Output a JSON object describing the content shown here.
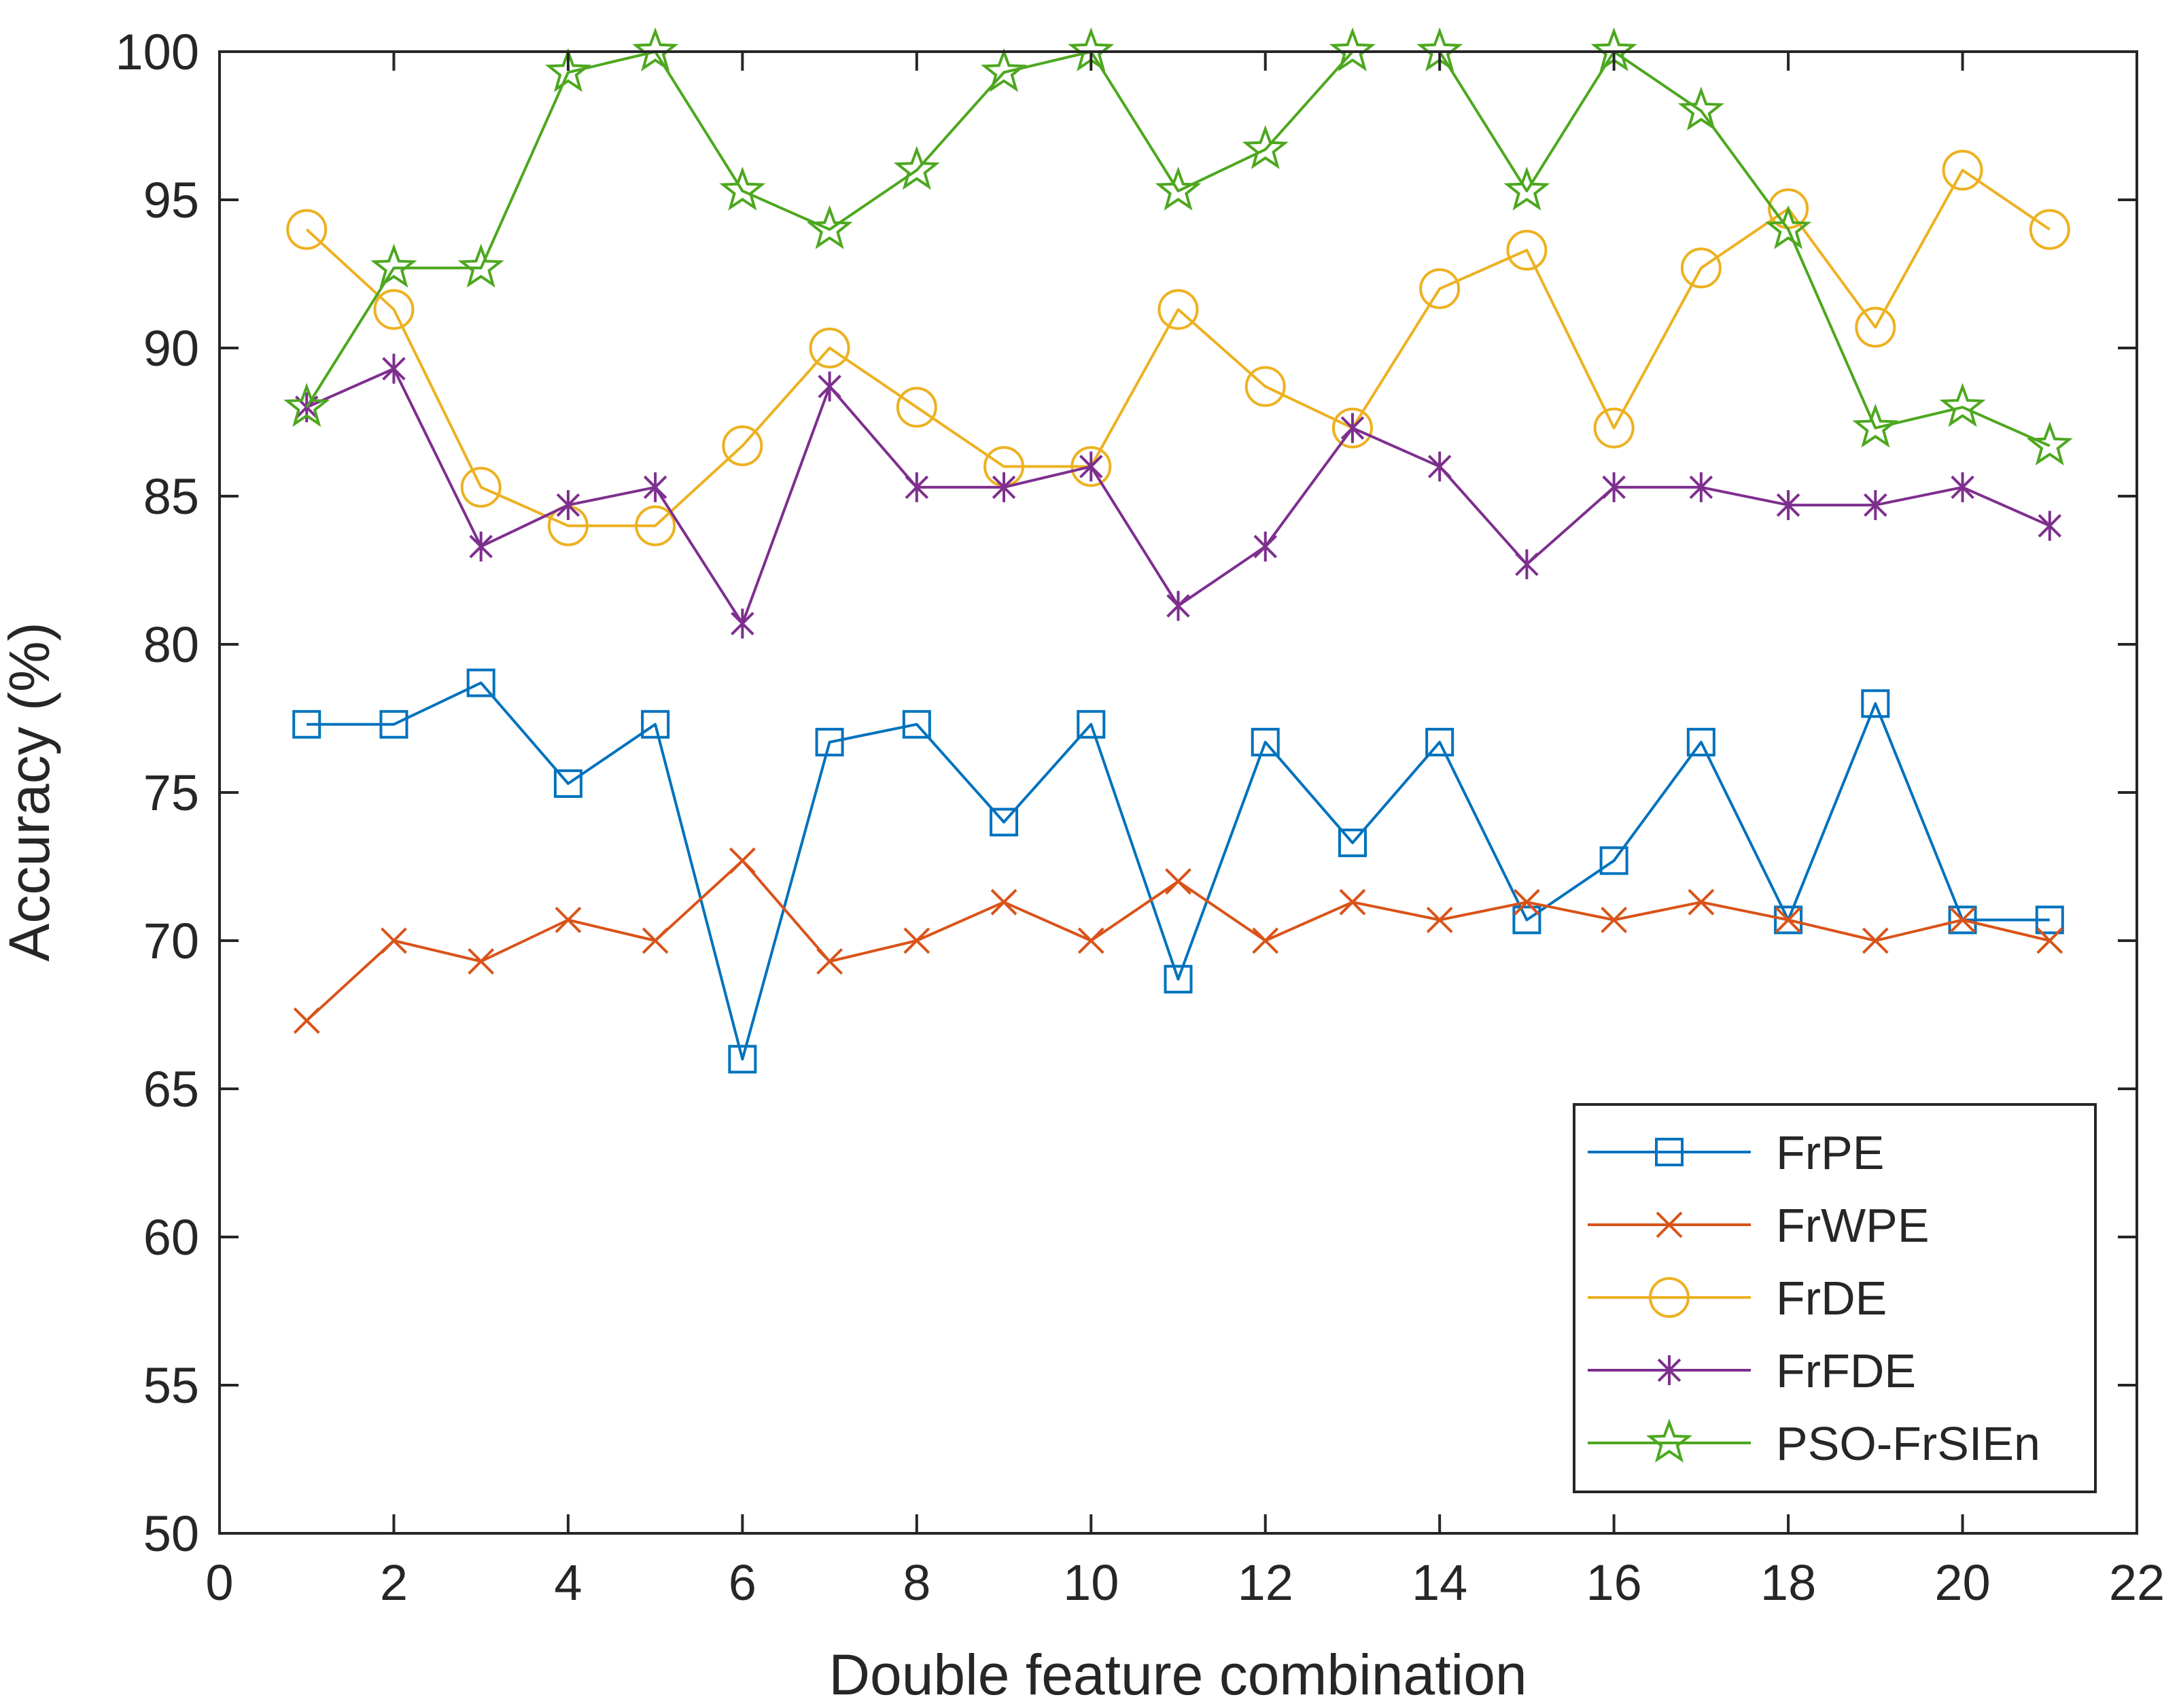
{
  "chart_data": {
    "type": "line",
    "title": "",
    "xlabel": "Double feature combination",
    "ylabel": "Accuracy (%)",
    "xlim": [
      0,
      22
    ],
    "ylim": [
      50,
      100
    ],
    "xticks": [
      0,
      2,
      4,
      6,
      8,
      10,
      12,
      14,
      16,
      18,
      20,
      22
    ],
    "yticks": [
      50,
      55,
      60,
      65,
      70,
      75,
      80,
      85,
      90,
      95,
      100
    ],
    "grid": false,
    "legend_position": "bottom-right",
    "x": [
      1,
      2,
      3,
      4,
      5,
      6,
      7,
      8,
      9,
      10,
      11,
      12,
      13,
      14,
      15,
      16,
      17,
      18,
      19,
      20,
      21
    ],
    "series": [
      {
        "name": "FrPE",
        "color": "#0072BD",
        "marker": "square",
        "values": [
          77.3,
          77.3,
          78.7,
          75.3,
          77.3,
          66.0,
          76.7,
          77.3,
          74.0,
          77.3,
          68.7,
          76.7,
          73.3,
          76.7,
          70.7,
          72.7,
          76.7,
          70.7,
          78.0,
          70.7,
          70.7
        ]
      },
      {
        "name": "FrWPE",
        "color": "#D95319",
        "marker": "x",
        "values": [
          67.3,
          70.0,
          69.3,
          70.7,
          70.0,
          72.7,
          69.3,
          70.0,
          71.3,
          70.0,
          72.0,
          70.0,
          71.3,
          70.7,
          71.3,
          70.7,
          71.3,
          70.7,
          70.0,
          70.7,
          70.0
        ]
      },
      {
        "name": "FrDE",
        "color": "#EDB120",
        "marker": "circle",
        "values": [
          94.0,
          91.3,
          85.3,
          84.0,
          84.0,
          86.7,
          90.0,
          88.0,
          86.0,
          86.0,
          91.3,
          88.7,
          87.3,
          92.0,
          93.3,
          87.3,
          92.7,
          94.7,
          90.7,
          96.0,
          94.0
        ]
      },
      {
        "name": "FrFDE",
        "color": "#7E2F8E",
        "marker": "asterisk",
        "values": [
          88.0,
          89.3,
          83.3,
          84.7,
          85.3,
          80.7,
          88.7,
          85.3,
          85.3,
          86.0,
          81.3,
          83.3,
          87.3,
          86.0,
          82.7,
          85.3,
          85.3,
          84.7,
          84.7,
          85.3,
          84.0
        ]
      },
      {
        "name": "PSO-FrSIEn",
        "color": "#4DA71F",
        "marker": "star",
        "values": [
          88.0,
          92.7,
          92.7,
          99.3,
          100.0,
          95.3,
          94.0,
          96.0,
          99.3,
          100.0,
          95.3,
          96.7,
          100.0,
          100.0,
          95.3,
          100.0,
          98.0,
          94.0,
          87.3,
          88.0,
          86.7
        ]
      }
    ]
  }
}
